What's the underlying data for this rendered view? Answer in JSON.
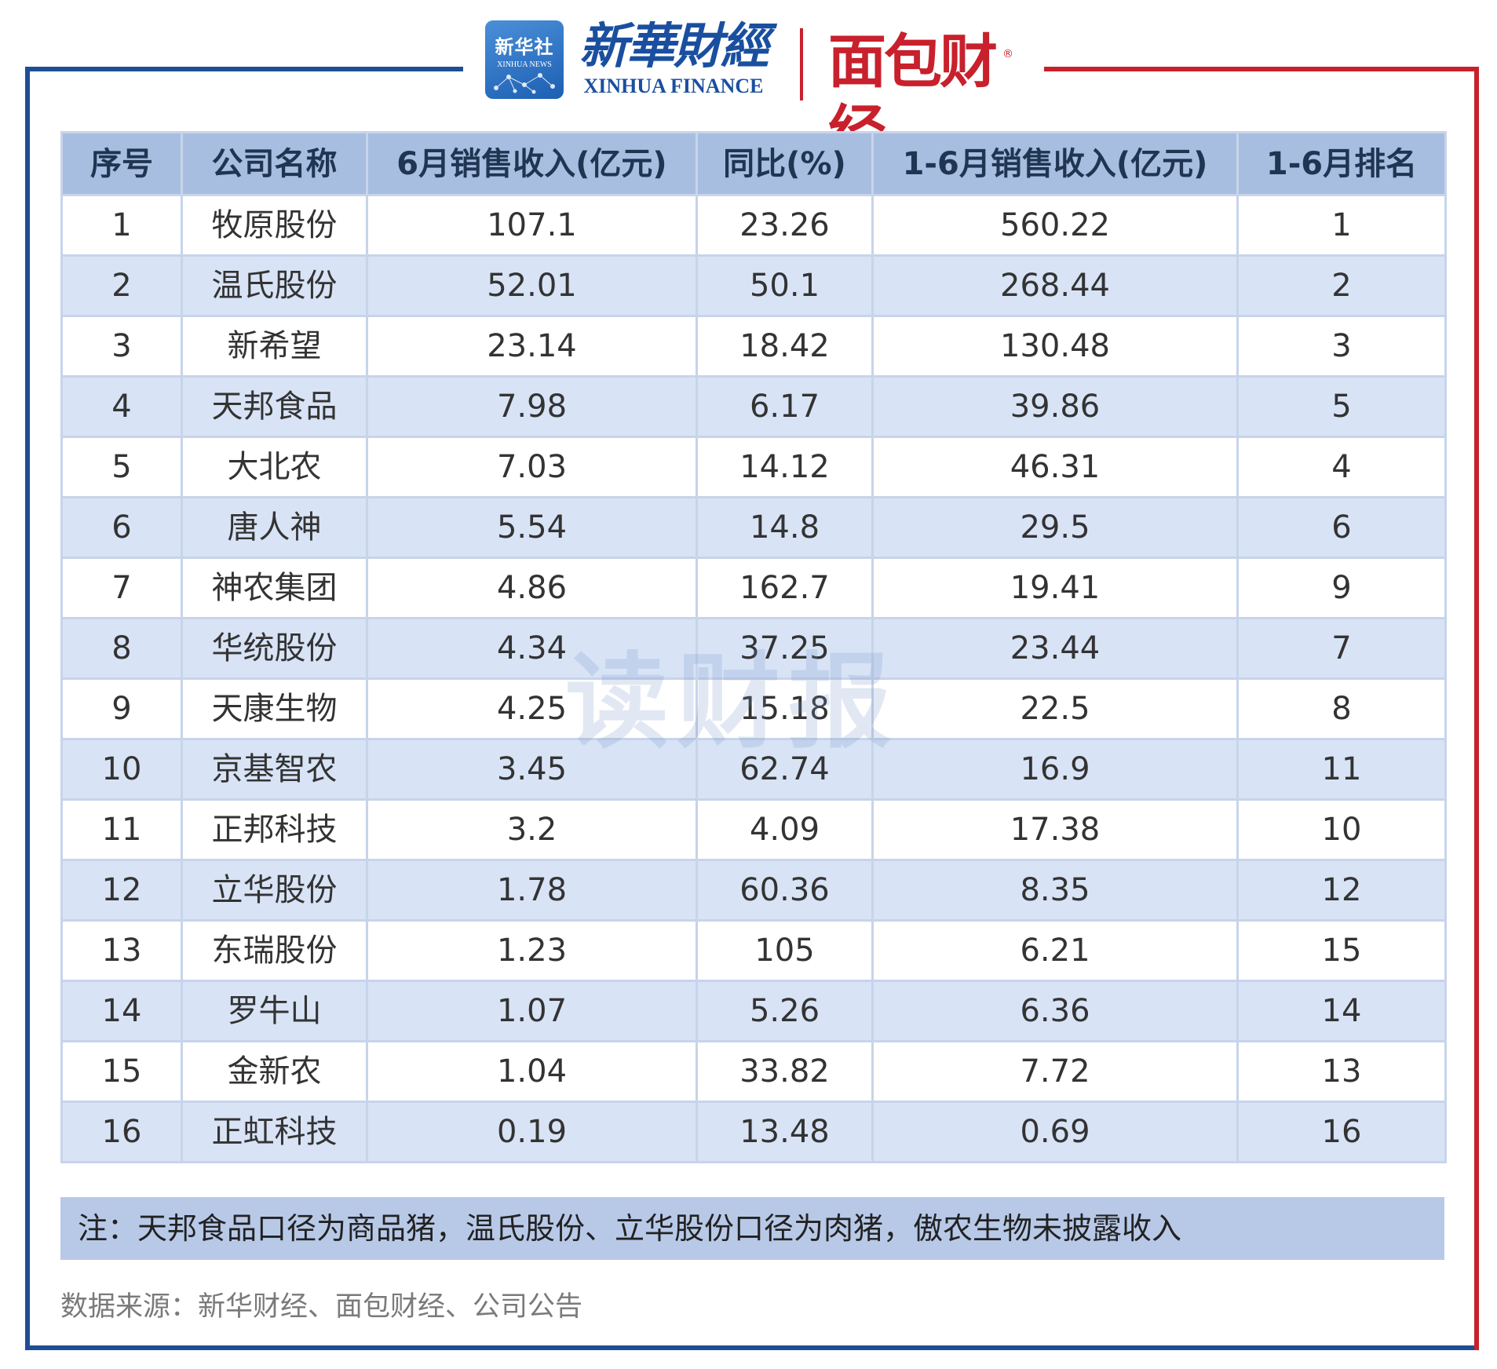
{
  "header": {
    "xinhua_badge_cn": "新华社",
    "xinhua_badge_en": "XINHUA NEWS",
    "xinhua_finance_cn": "新華財經",
    "xinhua_finance_en": "XINHUA FINANCE",
    "mianbao_logo": "面包财经",
    "mianbao_reg_mark": "®"
  },
  "colors": {
    "frame_left": "#1e4e94",
    "frame_right": "#c8202c",
    "header_row": "#a8bee0",
    "stripe_row": "#d8e3f6",
    "note_row": "#b8c9e8"
  },
  "table": {
    "columns": [
      "序号",
      "公司名称",
      "6月销售收入(亿元)",
      "同比(%)",
      "1-6月销售收入(亿元)",
      "1-6月排名"
    ],
    "rows": [
      [
        "1",
        "牧原股份",
        "107.1",
        "23.26",
        "560.22",
        "1"
      ],
      [
        "2",
        "温氏股份",
        "52.01",
        "50.1",
        "268.44",
        "2"
      ],
      [
        "3",
        "新希望",
        "23.14",
        "18.42",
        "130.48",
        "3"
      ],
      [
        "4",
        "天邦食品",
        "7.98",
        "6.17",
        "39.86",
        "5"
      ],
      [
        "5",
        "大北农",
        "7.03",
        "14.12",
        "46.31",
        "4"
      ],
      [
        "6",
        "唐人神",
        "5.54",
        "14.8",
        "29.5",
        "6"
      ],
      [
        "7",
        "神农集团",
        "4.86",
        "162.7",
        "19.41",
        "9"
      ],
      [
        "8",
        "华统股份",
        "4.34",
        "37.25",
        "23.44",
        "7"
      ],
      [
        "9",
        "天康生物",
        "4.25",
        "15.18",
        "22.5",
        "8"
      ],
      [
        "10",
        "京基智农",
        "3.45",
        "62.74",
        "16.9",
        "11"
      ],
      [
        "11",
        "正邦科技",
        "3.2",
        "4.09",
        "17.38",
        "10"
      ],
      [
        "12",
        "立华股份",
        "1.78",
        "60.36",
        "8.35",
        "12"
      ],
      [
        "13",
        "东瑞股份",
        "1.23",
        "105",
        "6.21",
        "15"
      ],
      [
        "14",
        "罗牛山",
        "1.07",
        "5.26",
        "6.36",
        "14"
      ],
      [
        "15",
        "金新农",
        "1.04",
        "33.82",
        "7.72",
        "13"
      ],
      [
        "16",
        "正虹科技",
        "0.19",
        "13.48",
        "0.69",
        "16"
      ]
    ],
    "note": "注：天邦食品口径为商品猪，温氏股份、立华股份口径为肉猪，傲农生物未披露收入"
  },
  "source": "数据来源：新华财经、面包财经、公司公告",
  "watermark": "读财报"
}
